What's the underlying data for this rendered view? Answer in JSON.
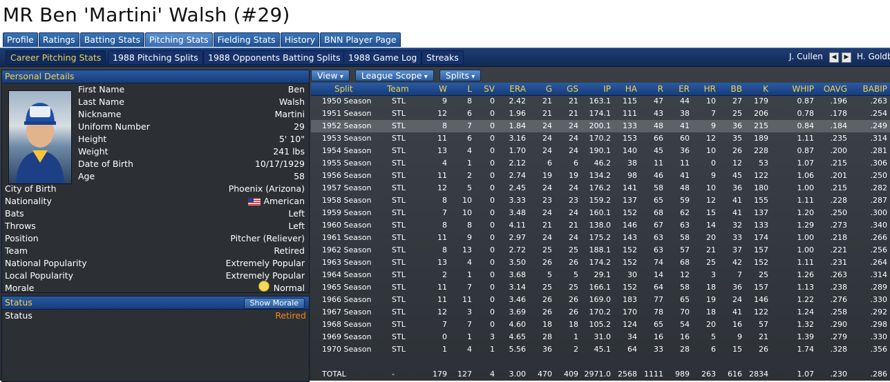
{
  "title": "MR Ben 'Martini' Walsh (#29)",
  "tabs": [
    "Profile",
    "Ratings",
    "Batting Stats",
    "Pitching Stats",
    "Fielding Stats",
    "History",
    "BNN Player Page"
  ],
  "active_tab": "Pitching Stats",
  "subtabs": [
    "Career Pitching Stats",
    "1988 Pitching Splits",
    "1988 Opponents Batting Splits",
    "1988 Game Log",
    "Streaks"
  ],
  "active_subtab": "Career Pitching Stats",
  "nav": {
    "prev_player": "J. Cullen",
    "next_player": "H. Goldb"
  },
  "personal": {
    "header": "Personal Details",
    "fields": [
      {
        "label": "First Name",
        "value": "Ben"
      },
      {
        "label": "Last Name",
        "value": "Walsh"
      },
      {
        "label": "Nickname",
        "value": "Martini"
      },
      {
        "label": "Uniform Number",
        "value": "29"
      },
      {
        "label": "Height",
        "value": "5' 10\""
      },
      {
        "label": "Weight",
        "value": "241 lbs"
      },
      {
        "label": "Date of Birth",
        "value": "10/17/1929"
      },
      {
        "label": "Age",
        "value": "58"
      }
    ],
    "fields2": [
      {
        "label": "City of Birth",
        "value": "Phoenix (Arizona)"
      },
      {
        "label": "Nationality",
        "value": "American"
      },
      {
        "label": "Bats",
        "value": "Left"
      },
      {
        "label": "Throws",
        "value": "Left"
      },
      {
        "label": "Position",
        "value": "Pitcher (Reliever)"
      },
      {
        "label": "Team",
        "value": "Retired"
      },
      {
        "label": "National Popularity",
        "value": "Extremely Popular"
      },
      {
        "label": "Local Popularity",
        "value": "Extremely Popular"
      },
      {
        "label": "Morale",
        "value": "Normal"
      }
    ]
  },
  "status": {
    "header": "Status",
    "button": "Show Morale",
    "label": "Status",
    "value": "Retired",
    "value_color": "#f08a1c"
  },
  "stat_controls": [
    "View",
    "League Scope",
    "Splits"
  ],
  "columns": [
    "Split",
    "Team",
    "W",
    "L",
    "SV",
    "ERA",
    "G",
    "GS",
    "IP",
    "HA",
    "R",
    "ER",
    "HR",
    "BB",
    "K",
    "WHIP",
    "OAVG",
    "BABIP"
  ],
  "highlight_row": 2,
  "rows": [
    [
      "1950 Season",
      "STL",
      "9",
      "8",
      "0",
      "2.42",
      "21",
      "21",
      "163.1",
      "115",
      "47",
      "44",
      "10",
      "27",
      "179",
      "0.87",
      ".196",
      ".263"
    ],
    [
      "1951 Season",
      "STL",
      "12",
      "6",
      "0",
      "1.96",
      "21",
      "21",
      "174.1",
      "111",
      "43",
      "38",
      "7",
      "25",
      "206",
      "0.78",
      ".178",
      ".254"
    ],
    [
      "1952 Season",
      "STL",
      "8",
      "7",
      "0",
      "1.84",
      "24",
      "24",
      "200.1",
      "133",
      "48",
      "41",
      "9",
      "36",
      "215",
      "0.84",
      ".184",
      ".249"
    ],
    [
      "1953 Season",
      "STL",
      "11",
      "6",
      "0",
      "3.16",
      "24",
      "24",
      "170.2",
      "153",
      "66",
      "60",
      "12",
      "35",
      "189",
      "1.11",
      ".235",
      ".314"
    ],
    [
      "1954 Season",
      "STL",
      "13",
      "4",
      "0",
      "1.70",
      "24",
      "24",
      "190.1",
      "140",
      "45",
      "36",
      "10",
      "26",
      "228",
      "0.87",
      ".200",
      ".281"
    ],
    [
      "1955 Season",
      "STL",
      "4",
      "1",
      "0",
      "2.12",
      "6",
      "6",
      "46.2",
      "38",
      "11",
      "11",
      "0",
      "12",
      "53",
      "1.07",
      ".215",
      ".306"
    ],
    [
      "1956 Season",
      "STL",
      "11",
      "2",
      "0",
      "2.74",
      "19",
      "19",
      "134.2",
      "98",
      "46",
      "41",
      "9",
      "45",
      "122",
      "1.06",
      ".201",
      ".250"
    ],
    [
      "1957 Season",
      "STL",
      "12",
      "5",
      "0",
      "2.45",
      "24",
      "24",
      "176.2",
      "141",
      "58",
      "48",
      "10",
      "36",
      "180",
      "1.00",
      ".215",
      ".282"
    ],
    [
      "1958 Season",
      "STL",
      "8",
      "10",
      "0",
      "3.33",
      "23",
      "23",
      "159.2",
      "137",
      "65",
      "59",
      "12",
      "41",
      "155",
      "1.11",
      ".228",
      ".287"
    ],
    [
      "1959 Season",
      "STL",
      "7",
      "10",
      "0",
      "3.48",
      "24",
      "24",
      "160.1",
      "152",
      "68",
      "62",
      "15",
      "41",
      "137",
      "1.20",
      ".250",
      ".300"
    ],
    [
      "1960 Season",
      "STL",
      "8",
      "8",
      "0",
      "4.11",
      "21",
      "21",
      "138.0",
      "146",
      "67",
      "63",
      "14",
      "32",
      "133",
      "1.29",
      ".273",
      ".340"
    ],
    [
      "1961 Season",
      "STL",
      "11",
      "9",
      "0",
      "2.97",
      "24",
      "24",
      "175.2",
      "143",
      "63",
      "58",
      "20",
      "33",
      "174",
      "1.00",
      ".218",
      ".266"
    ],
    [
      "1962 Season",
      "STL",
      "8",
      "13",
      "0",
      "2.72",
      "25",
      "25",
      "188.1",
      "152",
      "63",
      "57",
      "21",
      "37",
      "157",
      "1.00",
      ".221",
      ".256"
    ],
    [
      "1963 Season",
      "STL",
      "13",
      "4",
      "0",
      "3.50",
      "26",
      "26",
      "174.2",
      "152",
      "74",
      "68",
      "25",
      "42",
      "152",
      "1.11",
      ".231",
      ".264"
    ],
    [
      "1964 Season",
      "STL",
      "2",
      "1",
      "0",
      "3.68",
      "5",
      "5",
      "29.1",
      "30",
      "14",
      "12",
      "3",
      "7",
      "25",
      "1.26",
      ".263",
      ".314"
    ],
    [
      "1965 Season",
      "STL",
      "11",
      "7",
      "0",
      "3.14",
      "25",
      "25",
      "166.1",
      "152",
      "64",
      "58",
      "18",
      "36",
      "157",
      "1.13",
      ".238",
      ".289"
    ],
    [
      "1966 Season",
      "STL",
      "11",
      "11",
      "0",
      "3.46",
      "26",
      "26",
      "169.0",
      "183",
      "77",
      "65",
      "19",
      "24",
      "146",
      "1.22",
      ".276",
      ".330"
    ],
    [
      "1967 Season",
      "STL",
      "12",
      "3",
      "0",
      "3.69",
      "26",
      "26",
      "170.2",
      "170",
      "78",
      "70",
      "18",
      "41",
      "122",
      "1.24",
      ".258",
      ".292"
    ],
    [
      "1968 Season",
      "STL",
      "7",
      "7",
      "0",
      "4.60",
      "18",
      "18",
      "105.2",
      "124",
      "65",
      "54",
      "20",
      "16",
      "57",
      "1.32",
      ".290",
      ".298"
    ],
    [
      "1969 Season",
      "STL",
      "0",
      "1",
      "3",
      "4.65",
      "28",
      "1",
      "31.0",
      "34",
      "16",
      "16",
      "5",
      "9",
      "21",
      "1.39",
      ".279",
      ".330"
    ],
    [
      "1970 Season",
      "STL",
      "1",
      "4",
      "1",
      "5.56",
      "36",
      "2",
      "45.1",
      "64",
      "33",
      "28",
      "6",
      "15",
      "26",
      "1.74",
      ".328",
      ".356"
    ]
  ],
  "total": [
    "TOTAL",
    "-",
    "179",
    "127",
    "4",
    "3.00",
    "470",
    "409",
    "2971.0",
    "2568",
    "1111",
    "989",
    "263",
    "616",
    "2834",
    "1.07",
    ".230",
    ".286"
  ]
}
